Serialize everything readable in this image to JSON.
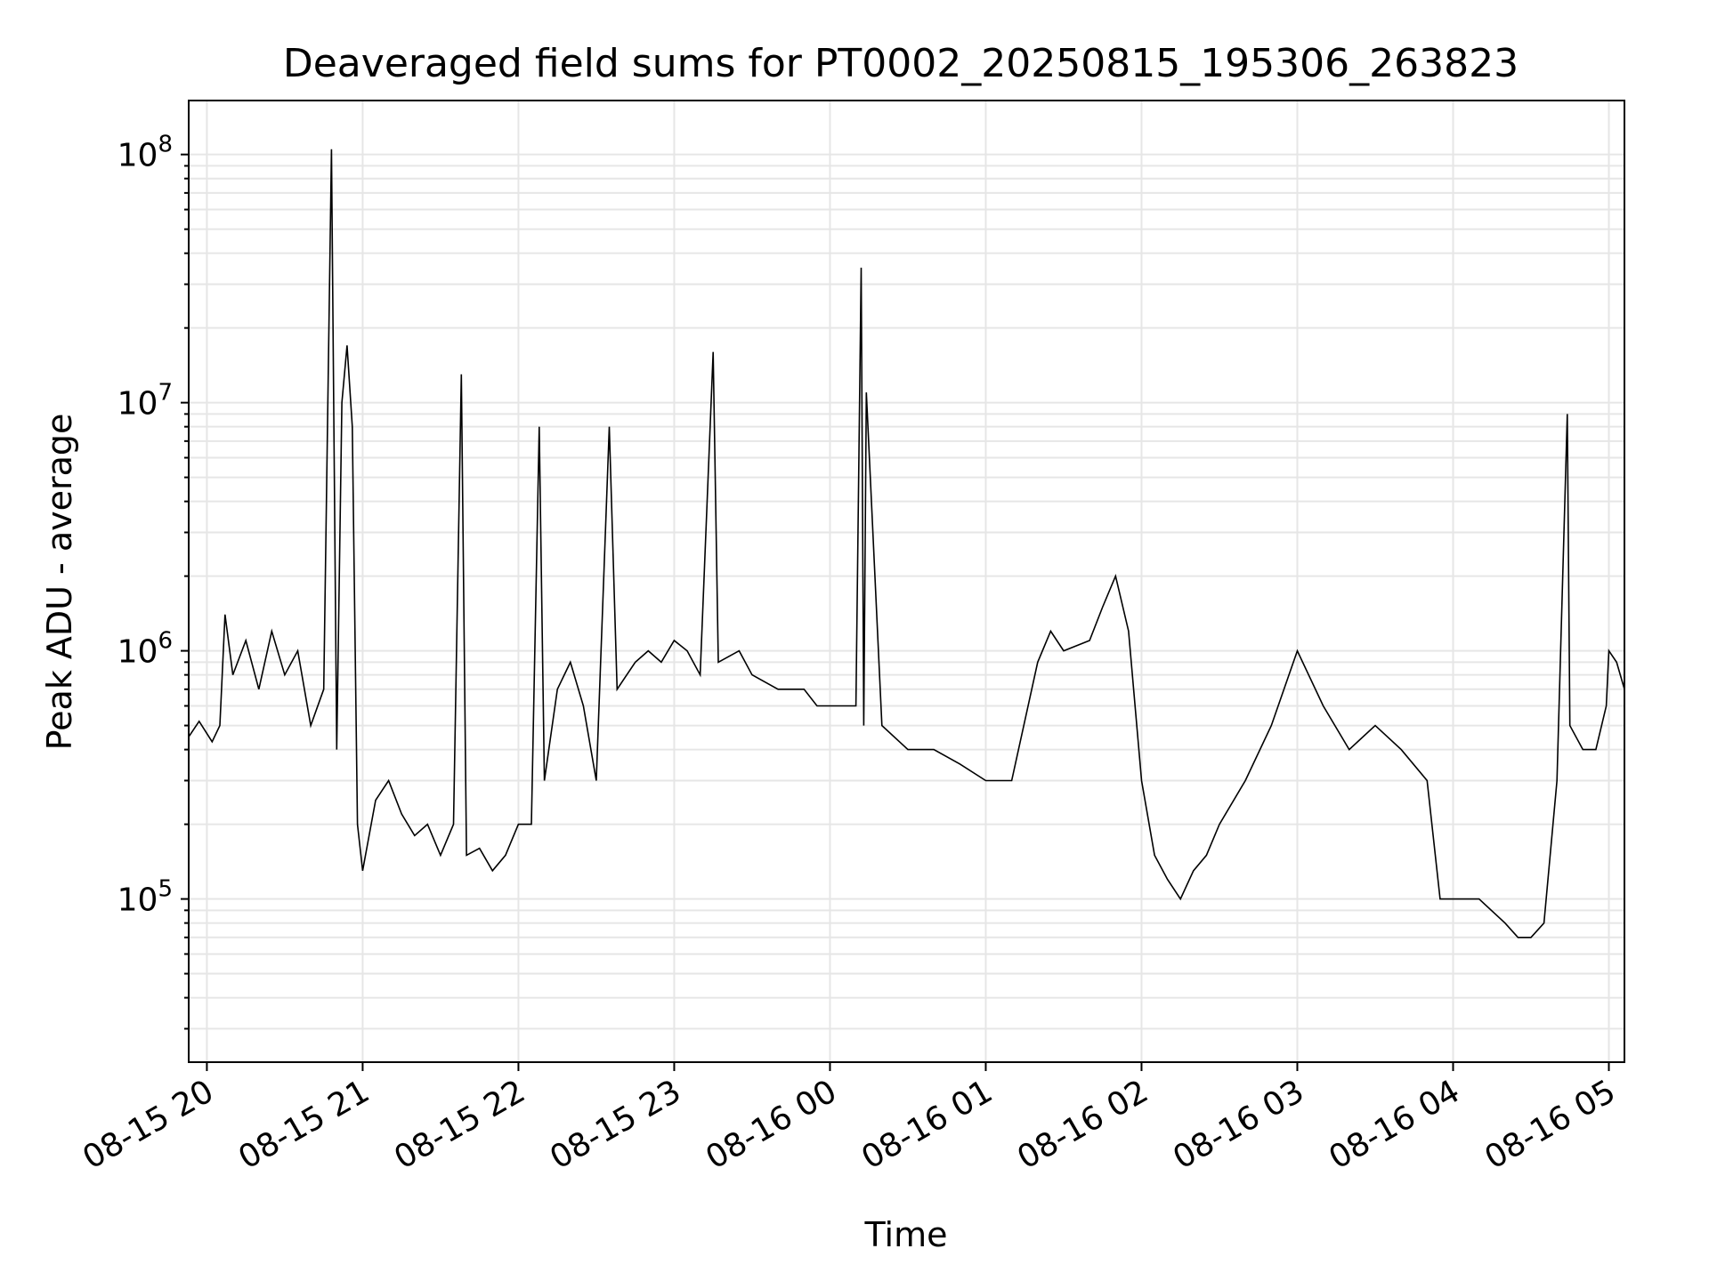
{
  "chart_data": {
    "type": "line",
    "title": "Deaveraged field sums for PT0002_20250815_195306_263823",
    "xlabel": "Time",
    "ylabel": "Peak ADU - average",
    "yscale": "log",
    "ylim": [
      22000,
      165000000
    ],
    "xlim": [
      "2025-08-15 19:53",
      "2025-08-16 05:06"
    ],
    "grid": true,
    "line_color": "#000000",
    "grid_color": "#e6e6e6",
    "x_ticks": [
      {
        "value": "2025-08-15 20:00",
        "label": "08-15 20"
      },
      {
        "value": "2025-08-15 21:00",
        "label": "08-15 21"
      },
      {
        "value": "2025-08-15 22:00",
        "label": "08-15 22"
      },
      {
        "value": "2025-08-15 23:00",
        "label": "08-15 23"
      },
      {
        "value": "2025-08-16 00:00",
        "label": "08-16 00"
      },
      {
        "value": "2025-08-16 01:00",
        "label": "08-16 01"
      },
      {
        "value": "2025-08-16 02:00",
        "label": "08-16 02"
      },
      {
        "value": "2025-08-16 03:00",
        "label": "08-16 03"
      },
      {
        "value": "2025-08-16 04:00",
        "label": "08-16 04"
      },
      {
        "value": "2025-08-16 05:00",
        "label": "08-16 05"
      }
    ],
    "y_ticks": [
      {
        "value": 100000,
        "base": "10",
        "exp": "5"
      },
      {
        "value": 1000000,
        "base": "10",
        "exp": "6"
      },
      {
        "value": 10000000,
        "base": "10",
        "exp": "7"
      },
      {
        "value": 100000000,
        "base": "10",
        "exp": "8"
      }
    ],
    "series": [
      {
        "values": [
          [
            "2025-08-15 19:53",
            450000
          ],
          [
            "2025-08-15 19:57",
            520000
          ],
          [
            "2025-08-15 20:02",
            430000
          ],
          [
            "2025-08-15 20:05",
            500000
          ],
          [
            "2025-08-15 20:07",
            1400000
          ],
          [
            "2025-08-15 20:10",
            800000
          ],
          [
            "2025-08-15 20:15",
            1100000
          ],
          [
            "2025-08-15 20:20",
            700000
          ],
          [
            "2025-08-15 20:25",
            1200000
          ],
          [
            "2025-08-15 20:30",
            800000
          ],
          [
            "2025-08-15 20:35",
            1000000
          ],
          [
            "2025-08-15 20:40",
            500000
          ],
          [
            "2025-08-15 20:45",
            700000
          ],
          [
            "2025-08-15 20:48",
            105000000
          ],
          [
            "2025-08-15 20:50",
            400000
          ],
          [
            "2025-08-15 20:52",
            10000000
          ],
          [
            "2025-08-15 20:54",
            17000000
          ],
          [
            "2025-08-15 20:56",
            8000000
          ],
          [
            "2025-08-15 20:58",
            200000
          ],
          [
            "2025-08-15 21:00",
            130000
          ],
          [
            "2025-08-15 21:05",
            250000
          ],
          [
            "2025-08-15 21:10",
            300000
          ],
          [
            "2025-08-15 21:15",
            220000
          ],
          [
            "2025-08-15 21:20",
            180000
          ],
          [
            "2025-08-15 21:25",
            200000
          ],
          [
            "2025-08-15 21:30",
            150000
          ],
          [
            "2025-08-15 21:35",
            200000
          ],
          [
            "2025-08-15 21:38",
            13000000
          ],
          [
            "2025-08-15 21:40",
            150000
          ],
          [
            "2025-08-15 21:45",
            160000
          ],
          [
            "2025-08-15 21:50",
            130000
          ],
          [
            "2025-08-15 21:55",
            150000
          ],
          [
            "2025-08-15 22:00",
            200000
          ],
          [
            "2025-08-15 22:05",
            200000
          ],
          [
            "2025-08-15 22:08",
            8000000
          ],
          [
            "2025-08-15 22:10",
            300000
          ],
          [
            "2025-08-15 22:15",
            700000
          ],
          [
            "2025-08-15 22:20",
            900000
          ],
          [
            "2025-08-15 22:25",
            600000
          ],
          [
            "2025-08-15 22:30",
            300000
          ],
          [
            "2025-08-15 22:35",
            8000000
          ],
          [
            "2025-08-15 22:38",
            700000
          ],
          [
            "2025-08-15 22:45",
            900000
          ],
          [
            "2025-08-15 22:50",
            1000000
          ],
          [
            "2025-08-15 22:55",
            900000
          ],
          [
            "2025-08-15 23:00",
            1100000
          ],
          [
            "2025-08-15 23:05",
            1000000
          ],
          [
            "2025-08-15 23:10",
            800000
          ],
          [
            "2025-08-15 23:15",
            16000000
          ],
          [
            "2025-08-15 23:17",
            900000
          ],
          [
            "2025-08-15 23:25",
            1000000
          ],
          [
            "2025-08-15 23:30",
            800000
          ],
          [
            "2025-08-15 23:40",
            700000
          ],
          [
            "2025-08-15 23:50",
            700000
          ],
          [
            "2025-08-15 23:55",
            600000
          ],
          [
            "2025-08-16 00:10",
            600000
          ],
          [
            "2025-08-16 00:12",
            35000000
          ],
          [
            "2025-08-16 00:13",
            500000
          ],
          [
            "2025-08-16 00:14",
            11000000
          ],
          [
            "2025-08-16 00:20",
            500000
          ],
          [
            "2025-08-16 00:30",
            400000
          ],
          [
            "2025-08-16 00:40",
            400000
          ],
          [
            "2025-08-16 00:50",
            350000
          ],
          [
            "2025-08-16 01:00",
            300000
          ],
          [
            "2025-08-16 01:10",
            300000
          ],
          [
            "2025-08-16 01:20",
            900000
          ],
          [
            "2025-08-16 01:25",
            1200000
          ],
          [
            "2025-08-16 01:30",
            1000000
          ],
          [
            "2025-08-16 01:40",
            1100000
          ],
          [
            "2025-08-16 01:45",
            1500000
          ],
          [
            "2025-08-16 01:50",
            2000000
          ],
          [
            "2025-08-16 01:55",
            1200000
          ],
          [
            "2025-08-16 02:00",
            300000
          ],
          [
            "2025-08-16 02:05",
            150000
          ],
          [
            "2025-08-16 02:10",
            120000
          ],
          [
            "2025-08-16 02:15",
            100000
          ],
          [
            "2025-08-16 02:20",
            130000
          ],
          [
            "2025-08-16 02:25",
            150000
          ],
          [
            "2025-08-16 02:30",
            200000
          ],
          [
            "2025-08-16 02:40",
            300000
          ],
          [
            "2025-08-16 02:50",
            500000
          ],
          [
            "2025-08-16 03:00",
            1000000
          ],
          [
            "2025-08-16 03:10",
            600000
          ],
          [
            "2025-08-16 03:20",
            400000
          ],
          [
            "2025-08-16 03:30",
            500000
          ],
          [
            "2025-08-16 03:40",
            400000
          ],
          [
            "2025-08-16 03:50",
            300000
          ],
          [
            "2025-08-16 03:55",
            100000
          ],
          [
            "2025-08-16 04:00",
            100000
          ],
          [
            "2025-08-16 04:10",
            100000
          ],
          [
            "2025-08-16 04:20",
            80000
          ],
          [
            "2025-08-16 04:25",
            70000
          ],
          [
            "2025-08-16 04:30",
            70000
          ],
          [
            "2025-08-16 04:35",
            80000
          ],
          [
            "2025-08-16 04:40",
            300000
          ],
          [
            "2025-08-16 04:44",
            9000000
          ],
          [
            "2025-08-16 04:45",
            500000
          ],
          [
            "2025-08-16 04:50",
            400000
          ],
          [
            "2025-08-16 04:55",
            400000
          ],
          [
            "2025-08-16 04:59",
            600000
          ],
          [
            "2025-08-16 05:00",
            1000000
          ],
          [
            "2025-08-16 05:03",
            900000
          ],
          [
            "2025-08-16 05:06",
            700000
          ]
        ]
      }
    ]
  }
}
